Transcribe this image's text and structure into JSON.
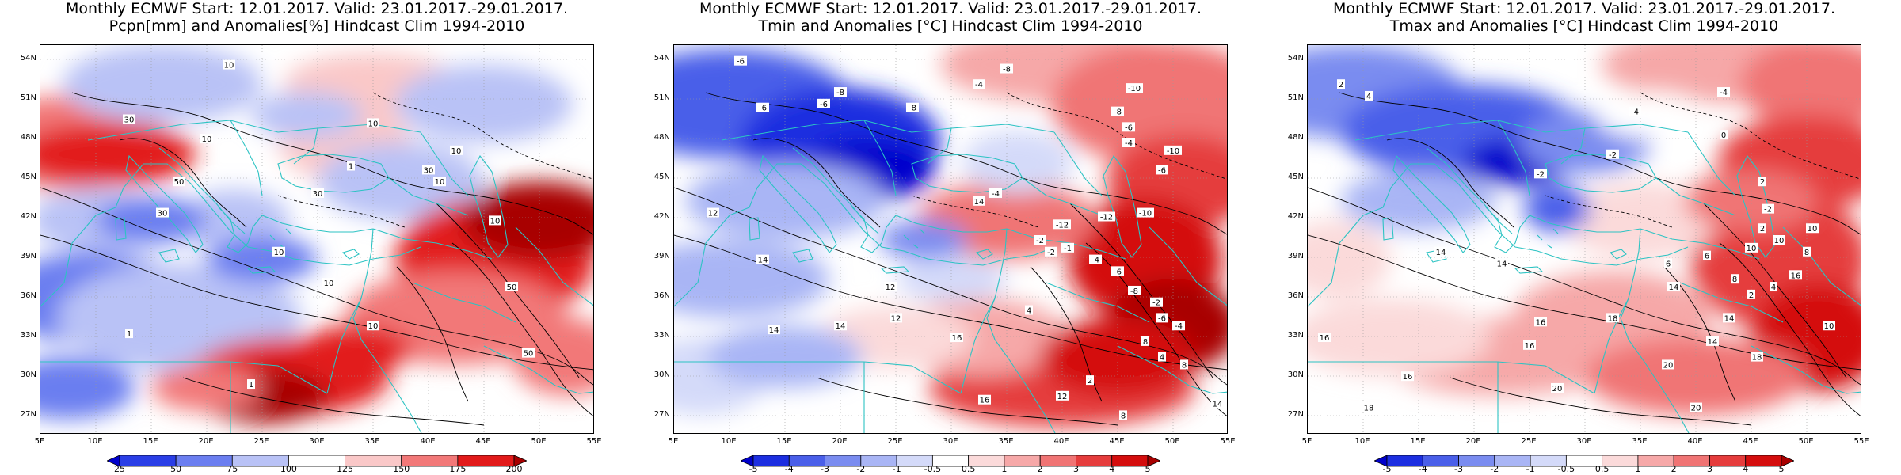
{
  "panels": [
    {
      "title_line1": "Monthly ECMWF Start: 12.01.2017. Valid: 23.01.2017.-29.01.2017.",
      "title_line2": "Pcpn[mm] and Anomalies[%] Hindcast Clim 1994-2010",
      "colorbar": {
        "labels": [
          "25",
          "50",
          "75",
          "100",
          "125",
          "150",
          "175",
          "200"
        ],
        "colors": [
          "#0000cc",
          "#2a3ee6",
          "#6b7ef0",
          "#b9c2f6",
          "#ffffff",
          "#fac8c8",
          "#f27878",
          "#e21a1a",
          "#a80000"
        ]
      },
      "contour_labels": [
        "10",
        "10",
        "10",
        "10",
        "10",
        "10",
        "10",
        "10",
        "30",
        "30",
        "30",
        "30",
        "50",
        "50",
        "50",
        "1",
        "1",
        "1",
        "10"
      ]
    },
    {
      "title_line1": "Monthly ECMWF Start: 12.01.2017. Valid: 23.01.2017.-29.01.2017.",
      "title_line2": "Tmin and Anomalies [°C] Hindcast Clim 1994-2010",
      "colorbar": {
        "labels": [
          "-5",
          "-4",
          "-3",
          "-2",
          "-1",
          "-0.5",
          "0.5",
          "1",
          "2",
          "3",
          "4",
          "5"
        ],
        "colors": [
          "#0000cc",
          "#1c2ee0",
          "#4a5fe9",
          "#7a8cf0",
          "#a9b5f5",
          "#d4daf9",
          "#ffffff",
          "#fbdada",
          "#f6a8a8",
          "#f07474",
          "#e53c3c",
          "#d40d0d",
          "#a80000"
        ]
      },
      "contour_labels": [
        "-6",
        "-6",
        "-6",
        "-8",
        "-8",
        "-4",
        "-8",
        "-10",
        "-8",
        "-6",
        "-4",
        "-6",
        "-10",
        "12",
        "14",
        "14",
        "14",
        "12",
        "16",
        "12",
        "14",
        "-4",
        "-12",
        "-2",
        "-1",
        "-2",
        "-4",
        "-6",
        "-8",
        "-2",
        "-6",
        "-4",
        "8",
        "4",
        "8",
        "-12",
        "-10",
        "16",
        "12",
        "8",
        "4",
        "2",
        "14"
      ]
    },
    {
      "title_line1": "Monthly ECMWF Start: 12.01.2017. Valid: 23.01.2017.-29.01.2017.",
      "title_line2": "Tmax and Anomalies [°C] Hindcast Clim 1994-2010",
      "colorbar": {
        "labels": [
          "-5",
          "-4",
          "-3",
          "-2",
          "-1",
          "-0.5",
          "0.5",
          "1",
          "2",
          "3",
          "4",
          "5"
        ],
        "colors": [
          "#0000cc",
          "#1c2ee0",
          "#4a5fe9",
          "#7a8cf0",
          "#a9b5f5",
          "#d4daf9",
          "#ffffff",
          "#fbdada",
          "#f6a8a8",
          "#f07474",
          "#e53c3c",
          "#d40d0d",
          "#a80000"
        ]
      },
      "contour_labels": [
        "2",
        "4",
        "-2",
        "-4",
        "-4",
        "-2",
        "0",
        "2",
        "-2",
        "6",
        "10",
        "14",
        "14",
        "16",
        "18",
        "14",
        "16",
        "16",
        "20",
        "20",
        "18",
        "16",
        "14",
        "10",
        "6",
        "4",
        "2",
        "8",
        "10",
        "20",
        "16",
        "18",
        "14",
        "10",
        "8",
        "2"
      ]
    }
  ],
  "lat_ticks": [
    "54N",
    "51N",
    "48N",
    "45N",
    "42N",
    "39N",
    "36N",
    "33N",
    "30N",
    "27N"
  ],
  "lon_ticks": [
    "5E",
    "10E",
    "15E",
    "20E",
    "25E",
    "30E",
    "35E",
    "40E",
    "45E",
    "50E",
    "55E"
  ]
}
